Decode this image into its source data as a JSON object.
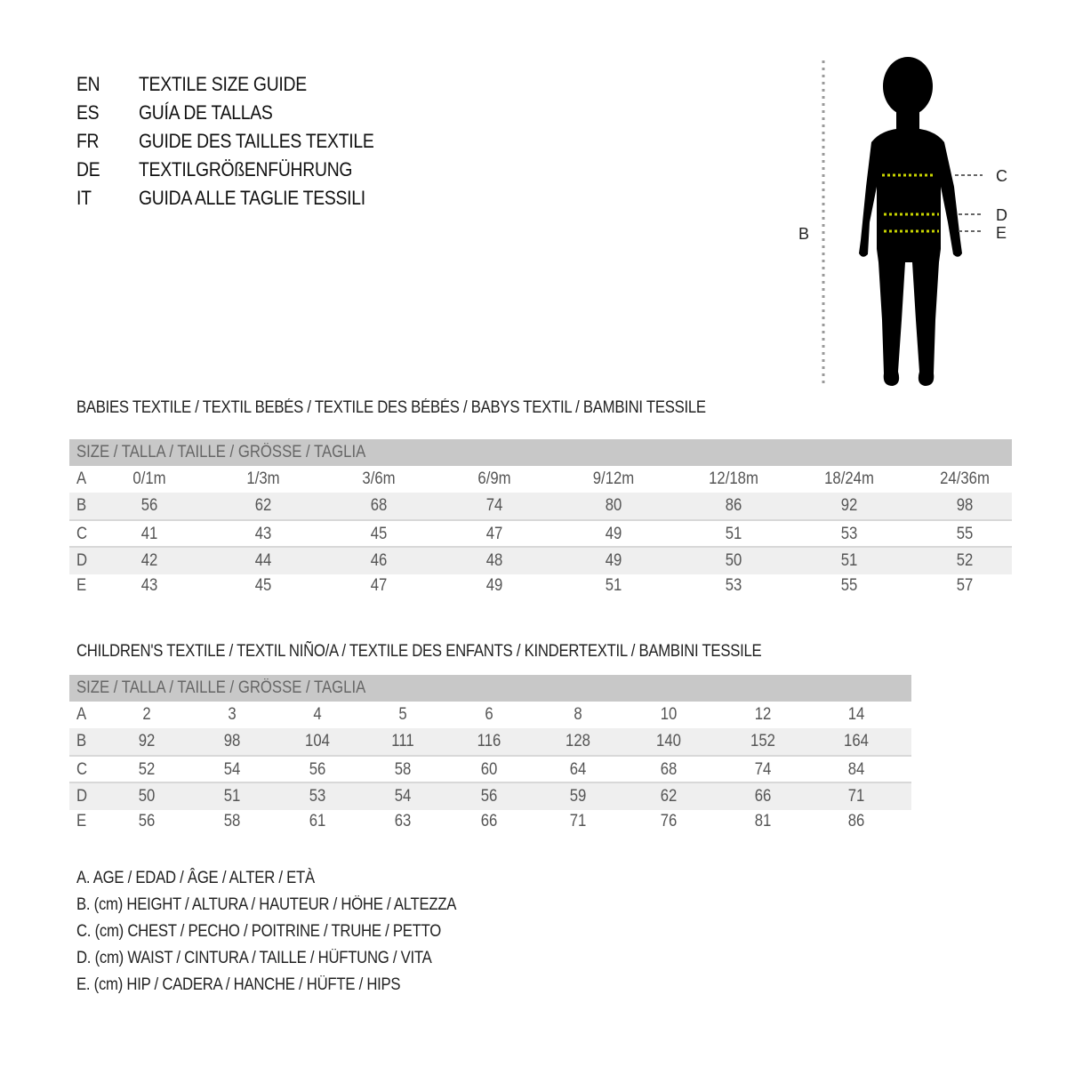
{
  "title_block": [
    {
      "code": "EN",
      "text": "TEXTILE SIZE GUIDE"
    },
    {
      "code": "ES",
      "text": "GUÍA DE TALLAS"
    },
    {
      "code": "FR",
      "text": "GUIDE DES TAILLES TEXTILE"
    },
    {
      "code": "DE",
      "text": "TEXTILGRÖßENFÜHRUNG"
    },
    {
      "code": "IT",
      "text": "GUIDA ALLE TAGLIE TESSILI"
    }
  ],
  "figure": {
    "labels": {
      "height": "B",
      "chest": "C",
      "waist": "D",
      "hip": "E"
    },
    "measure_line_color": "#c8d400"
  },
  "babies": {
    "title": "BABIES TEXTILE / TEXTIL BEBÉS / TEXTILE DES BÉBÉS / BABYS TEXTIL  / BAMBINI TESSILE",
    "header": "SIZE / TALLA / TAILLE / GRÖSSE / TAGLIA",
    "rows": [
      {
        "label": "A",
        "values": [
          "0/1m",
          "1/3m",
          "3/6m",
          "6/9m",
          "9/12m",
          "12/18m",
          "18/24m",
          "24/36m"
        ]
      },
      {
        "label": "B",
        "values": [
          "56",
          "62",
          "68",
          "74",
          "80",
          "86",
          "92",
          "98"
        ]
      },
      {
        "label": "C",
        "values": [
          "41",
          "43",
          "45",
          "47",
          "49",
          "51",
          "53",
          "55"
        ]
      },
      {
        "label": "D",
        "values": [
          "42",
          "44",
          "46",
          "48",
          "49",
          "50",
          "51",
          "52"
        ]
      },
      {
        "label": "E",
        "values": [
          "43",
          "45",
          "47",
          "49",
          "51",
          "53",
          "55",
          "57"
        ]
      }
    ]
  },
  "children": {
    "title": "CHILDREN'S TEXTILE / TEXTIL NIÑO/A / TEXTILE DES ENFANTS / KINDERTEXTIL / BAMBINI TESSILE",
    "header": "SIZE / TALLA / TAILLE / GRÖSSE / TAGLIA",
    "rows": [
      {
        "label": "A",
        "values": [
          "2",
          "3",
          "4",
          "5",
          "6",
          "8",
          "10",
          "12",
          "14"
        ]
      },
      {
        "label": "B",
        "values": [
          "92",
          "98",
          "104",
          "111",
          "116",
          "128",
          "140",
          "152",
          "164"
        ]
      },
      {
        "label": "C",
        "values": [
          "52",
          "54",
          "56",
          "58",
          "60",
          "64",
          "68",
          "74",
          "84"
        ]
      },
      {
        "label": "D",
        "values": [
          "50",
          "51",
          "53",
          "54",
          "56",
          "59",
          "62",
          "66",
          "71"
        ]
      },
      {
        "label": "E",
        "values": [
          "56",
          "58",
          "61",
          "63",
          "66",
          "71",
          "76",
          "81",
          "86"
        ]
      }
    ]
  },
  "legend": [
    "A. AGE / EDAD / ÂGE / ALTER / ETÀ",
    "B. (cm) HEIGHT / ALTURA / HAUTEUR / HÖHE / ALTEZZA",
    "C. (cm) CHEST / PECHO / POITRINE / TRUHE / PETTO",
    "D. (cm) WAIST / CINTURA / TAILLE / HÜFTUNG / VITA",
    "E. (cm) HIP / CADERA / HANCHE / HÜFTE / HIPS"
  ]
}
